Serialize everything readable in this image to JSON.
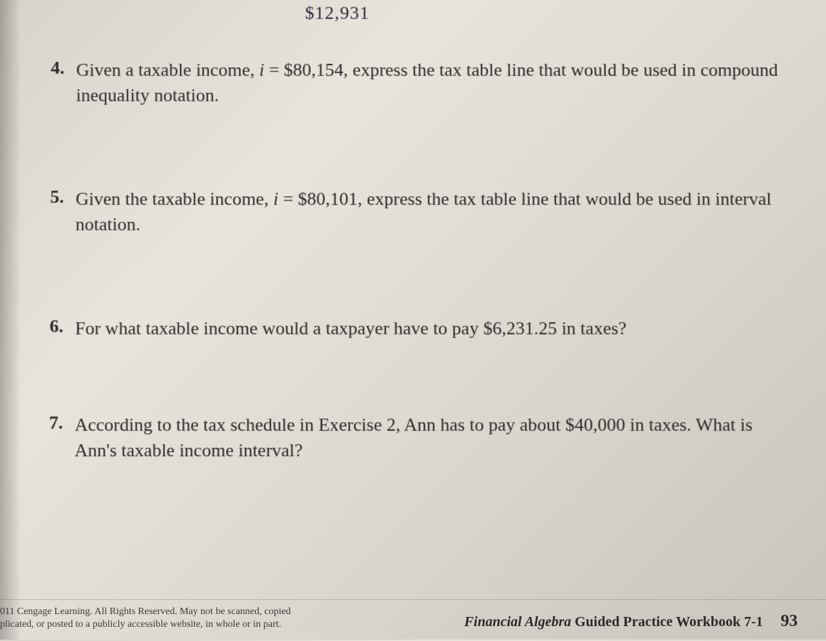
{
  "handwritten_note": "$12,931",
  "questions": {
    "q4": {
      "number": "4.",
      "text_before_var": "Given a taxable income, ",
      "variable": "i",
      "text_after_var": " = $80,154, express the tax table line that would be used in compound inequality notation."
    },
    "q5": {
      "number": "5.",
      "text_before_var": "Given the taxable income, ",
      "variable": "i",
      "text_after_var": " = $80,101, express the tax table line that would be used in interval notation."
    },
    "q6": {
      "number": "6.",
      "text": "For what taxable income would a taxpayer have to pay $6,231.25 in taxes?"
    },
    "q7": {
      "number": "7.",
      "text": "According to the tax schedule in Exercise 2, Ann has to pay about $40,000 in taxes. What is Ann's taxable income interval?"
    }
  },
  "footer": {
    "copyright_line1": "011 Cengage Learning. All Rights Reserved. May not be scanned, copied",
    "copyright_line2": "plicated, or posted to a publicly accessible website, in whole or in part.",
    "title_italic": "Financial Algebra",
    "title_rest": " Guided Practice Workbook 7-1",
    "page_number": "93"
  },
  "colors": {
    "text": "#2a2a2a",
    "handwritten": "#2a2a3a",
    "bg_light": "#e8e4dc",
    "bg_dark": "#c8c4bc"
  },
  "typography": {
    "body_fontsize_pt": 20,
    "number_fontsize_pt": 20,
    "footer_fontsize_pt": 11
  }
}
